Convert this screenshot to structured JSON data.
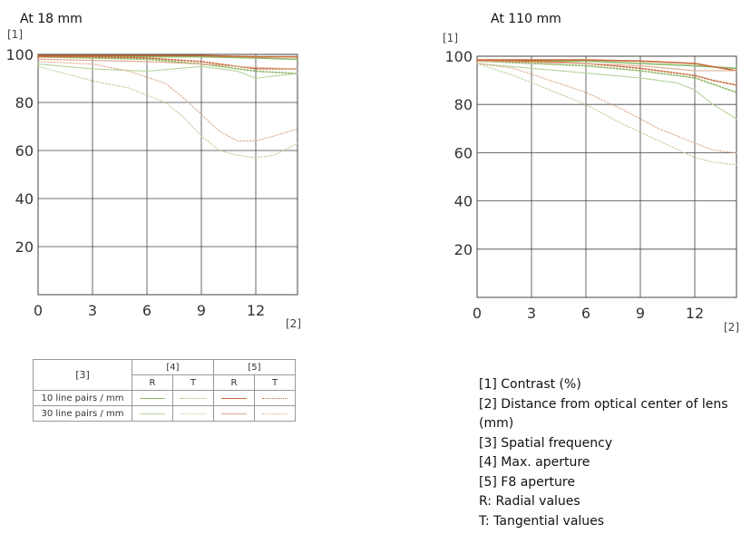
{
  "colors": {
    "green": "#8db865",
    "green_light": "#b7d39a",
    "orange": "#c8683a",
    "orange_light": "#dba98a",
    "grid": "#444444"
  },
  "notes": [
    "[1] Contrast (%)",
    "[2] Distance from optical center of lens (mm)",
    "[3] Spatial frequency",
    "[4] Max. aperture",
    "[5] F8 aperture",
    "R: Radial values",
    "T: Tangential values"
  ],
  "legend": {
    "header_freq": "[3]",
    "header_max": "[4]",
    "header_f8": "[5]",
    "col_r": "R",
    "col_t": "T",
    "row_10": "10 line pairs / mm",
    "row_30": "30 line pairs / mm"
  },
  "chart_data": [
    {
      "type": "line",
      "title": "At 18 mm",
      "ylabel": "[1]",
      "xlabel": "[2]",
      "xlim": [
        0,
        14.3
      ],
      "ylim": [
        0,
        100
      ],
      "x_ticks": [
        0,
        3,
        6,
        9,
        12
      ],
      "y_ticks": [
        20,
        40,
        60,
        80,
        100
      ],
      "series": [
        {
          "group": "max",
          "freq": 10,
          "dir": "R",
          "x": [
            0,
            3,
            6,
            9,
            12,
            14.3
          ],
          "y": [
            99,
            99,
            99,
            99,
            98.5,
            98
          ]
        },
        {
          "group": "max",
          "freq": 10,
          "dir": "T",
          "x": [
            0,
            3,
            6,
            9,
            12,
            14.3
          ],
          "y": [
            99,
            98.5,
            98,
            96,
            93,
            92
          ]
        },
        {
          "group": "max",
          "freq": 30,
          "dir": "R",
          "x": [
            0,
            3,
            6,
            9,
            11,
            12,
            13,
            14.3
          ],
          "y": [
            96,
            94,
            93,
            95,
            93,
            90,
            91,
            92
          ]
        },
        {
          "group": "max",
          "freq": 30,
          "dir": "T",
          "x": [
            0,
            3,
            5,
            7,
            8,
            9,
            10,
            11,
            12,
            13,
            14.3
          ],
          "y": [
            95,
            89,
            86,
            80,
            74,
            66,
            60,
            58,
            57,
            58,
            63
          ]
        },
        {
          "group": "f8",
          "freq": 10,
          "dir": "R",
          "x": [
            0,
            3,
            6,
            9,
            12,
            14.3
          ],
          "y": [
            99.5,
            99.5,
            99.5,
            99.5,
            99,
            99
          ]
        },
        {
          "group": "f8",
          "freq": 10,
          "dir": "T",
          "x": [
            0,
            3,
            6,
            9,
            12,
            14.3
          ],
          "y": [
            99,
            99,
            98.5,
            97,
            94,
            94
          ]
        },
        {
          "group": "f8",
          "freq": 30,
          "dir": "R",
          "x": [
            0,
            3,
            6,
            9,
            12,
            14.3
          ],
          "y": [
            98,
            97.5,
            97,
            96,
            94.5,
            94
          ]
        },
        {
          "group": "f8",
          "freq": 30,
          "dir": "T",
          "x": [
            0,
            3,
            5,
            7,
            8,
            9,
            10,
            11,
            12,
            13,
            14.3
          ],
          "y": [
            97,
            96,
            93,
            88,
            82,
            75,
            68,
            64,
            64,
            66,
            69
          ]
        }
      ]
    },
    {
      "type": "line",
      "title": "At 110 mm",
      "ylabel": "[1]",
      "xlabel": "[2]",
      "xlim": [
        0,
        14.3
      ],
      "ylim": [
        0,
        100
      ],
      "x_ticks": [
        0,
        3,
        6,
        9,
        12
      ],
      "y_ticks": [
        20,
        40,
        60,
        80,
        100
      ],
      "series": [
        {
          "group": "max",
          "freq": 10,
          "dir": "R",
          "x": [
            0,
            3,
            6,
            9,
            12,
            14.3
          ],
          "y": [
            98,
            98,
            98,
            97,
            96,
            95
          ]
        },
        {
          "group": "max",
          "freq": 10,
          "dir": "T",
          "x": [
            0,
            3,
            6,
            9,
            12,
            14.3
          ],
          "y": [
            98,
            97,
            96,
            94,
            91,
            85
          ]
        },
        {
          "group": "max",
          "freq": 30,
          "dir": "R",
          "x": [
            0,
            3,
            6,
            9,
            11,
            12,
            13,
            14.3
          ],
          "y": [
            97,
            95,
            93,
            91,
            89,
            86,
            80,
            74
          ]
        },
        {
          "group": "max",
          "freq": 30,
          "dir": "T",
          "x": [
            0,
            2,
            4,
            6,
            8,
            10,
            12,
            13,
            14.3
          ],
          "y": [
            97,
            92,
            86,
            80,
            72,
            65,
            58,
            56,
            55
          ]
        },
        {
          "group": "f8",
          "freq": 10,
          "dir": "R",
          "x": [
            0,
            3,
            6,
            9,
            12,
            14.3
          ],
          "y": [
            98.5,
            98.5,
            98.5,
            98,
            97,
            94
          ]
        },
        {
          "group": "f8",
          "freq": 10,
          "dir": "T",
          "x": [
            0,
            3,
            6,
            9,
            11,
            12,
            13,
            14.3
          ],
          "y": [
            98,
            98,
            97,
            95,
            93,
            92,
            90,
            88
          ]
        },
        {
          "group": "f8",
          "freq": 30,
          "dir": "R",
          "x": [
            0,
            3,
            6,
            9,
            12,
            14.3
          ],
          "y": [
            98,
            97.5,
            97,
            96,
            94,
            94
          ]
        },
        {
          "group": "f8",
          "freq": 30,
          "dir": "T",
          "x": [
            0,
            2,
            4,
            6,
            8,
            10,
            12,
            13,
            14.3
          ],
          "y": [
            97,
            95,
            90,
            85,
            78,
            70,
            64,
            61,
            60
          ]
        }
      ]
    }
  ]
}
